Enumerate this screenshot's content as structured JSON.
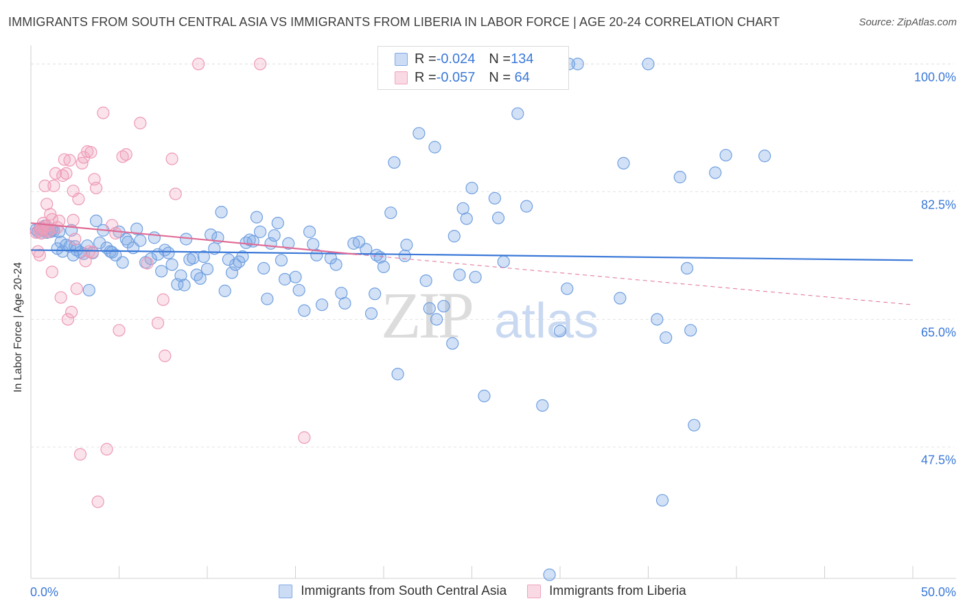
{
  "title": "IMMIGRANTS FROM SOUTH CENTRAL ASIA VS IMMIGRANTS FROM LIBERIA IN LABOR FORCE | AGE 20-24 CORRELATION CHART",
  "source": "Source: ZipAtlas.com",
  "watermark": {
    "zip": "ZIP",
    "atlas": "atlas"
  },
  "legend": {
    "rows": [
      {
        "r_label": "R = ",
        "r_value": "-0.024",
        "n_label": "N = ",
        "n_value": "134",
        "color": "#7fa8e6"
      },
      {
        "r_label": "R = ",
        "r_value": "-0.057",
        "n_label": "N = ",
        "n_value": " 64",
        "color": "#f0a3bc"
      }
    ]
  },
  "bottom_legend": [
    {
      "label": "Immigrants from South Central Asia",
      "color": "#7fa8e6"
    },
    {
      "label": "Immigrants from Liberia",
      "color": "#f0a3bc"
    }
  ],
  "colors": {
    "blue": "#6f9fe0",
    "pink": "#ee98b4",
    "blue_line": "#3a78d8",
    "pink_line": "#e06b95",
    "tick_text": "#3a78d8",
    "grid": "#e3e3e3"
  },
  "chart_data": {
    "type": "scatter",
    "title": "IMMIGRANTS FROM SOUTH CENTRAL ASIA VS IMMIGRANTS FROM LIBERIA IN LABOR FORCE | AGE 20-24 CORRELATION CHART",
    "xlabel": "",
    "ylabel": "In Labor Force | Age 20-24",
    "xlim": [
      0,
      50
    ],
    "ylim": [
      29.5,
      102
    ],
    "x_tick_labels": [
      {
        "value": 0,
        "label": "0.0%"
      },
      {
        "value": 50,
        "label": "50.0%"
      }
    ],
    "y_tick_labels": [
      {
        "value": 100,
        "label": "100.0%"
      },
      {
        "value": 82.5,
        "label": "82.5%"
      },
      {
        "value": 65,
        "label": "65.0%"
      },
      {
        "value": 47.5,
        "label": "47.5%"
      }
    ],
    "grid": true,
    "series": [
      {
        "name": "Immigrants from South Central Asia",
        "color": "#6f9fe0",
        "trend": {
          "x": [
            0,
            50
          ],
          "y": [
            74.5,
            73.1
          ],
          "dashed_from": null
        },
        "points": [
          [
            0.3,
            77.3
          ],
          [
            0.4,
            77.0
          ],
          [
            0.5,
            77.5
          ],
          [
            0.6,
            76.8
          ],
          [
            0.7,
            77.2
          ],
          [
            0.8,
            77.8
          ],
          [
            0.9,
            76.9
          ],
          [
            1.0,
            77.3
          ],
          [
            1.1,
            77.0
          ],
          [
            1.2,
            77.2
          ],
          [
            1.3,
            77.1
          ],
          [
            1.5,
            74.7
          ],
          [
            1.6,
            77.0
          ],
          [
            1.7,
            75.6
          ],
          [
            1.8,
            74.3
          ],
          [
            2.0,
            75.2
          ],
          [
            2.2,
            75.0
          ],
          [
            2.3,
            77.2
          ],
          [
            2.4,
            73.8
          ],
          [
            2.5,
            75.0
          ],
          [
            2.6,
            74.5
          ],
          [
            2.8,
            74.2
          ],
          [
            3.0,
            74.0
          ],
          [
            3.2,
            75.1
          ],
          [
            3.3,
            69.0
          ],
          [
            3.5,
            74.1
          ],
          [
            3.7,
            78.5
          ],
          [
            3.9,
            75.5
          ],
          [
            4.1,
            77.2
          ],
          [
            4.3,
            74.8
          ],
          [
            4.5,
            74.3
          ],
          [
            4.6,
            74.2
          ],
          [
            4.8,
            73.8
          ],
          [
            5.0,
            77.0
          ],
          [
            5.2,
            72.8
          ],
          [
            5.4,
            76.0
          ],
          [
            5.5,
            75.6
          ],
          [
            5.8,
            74.8
          ],
          [
            6.0,
            77.4
          ],
          [
            6.2,
            75.8
          ],
          [
            6.5,
            72.8
          ],
          [
            6.8,
            73.3
          ],
          [
            7.0,
            76.2
          ],
          [
            7.2,
            73.9
          ],
          [
            7.4,
            71.6
          ],
          [
            7.6,
            74.5
          ],
          [
            7.8,
            74.1
          ],
          [
            8.0,
            72.5
          ],
          [
            8.3,
            69.8
          ],
          [
            8.5,
            71.0
          ],
          [
            8.7,
            69.7
          ],
          [
            8.8,
            76.0
          ],
          [
            9.0,
            73.2
          ],
          [
            9.2,
            73.4
          ],
          [
            9.4,
            71.1
          ],
          [
            9.6,
            70.6
          ],
          [
            9.8,
            73.6
          ],
          [
            10.0,
            71.9
          ],
          [
            10.2,
            76.6
          ],
          [
            10.4,
            74.7
          ],
          [
            10.6,
            76.2
          ],
          [
            10.8,
            79.7
          ],
          [
            11.0,
            68.9
          ],
          [
            11.2,
            73.2
          ],
          [
            11.4,
            71.4
          ],
          [
            11.6,
            72.5
          ],
          [
            11.8,
            72.9
          ],
          [
            12.0,
            73.6
          ],
          [
            12.2,
            75.5
          ],
          [
            12.4,
            75.9
          ],
          [
            12.6,
            75.7
          ],
          [
            12.8,
            79.0
          ],
          [
            13.0,
            77.0
          ],
          [
            13.2,
            72.0
          ],
          [
            13.4,
            67.8
          ],
          [
            13.6,
            75.4
          ],
          [
            13.8,
            76.5
          ],
          [
            14.0,
            78.2
          ],
          [
            14.2,
            73.1
          ],
          [
            14.4,
            70.5
          ],
          [
            14.6,
            75.4
          ],
          [
            15.0,
            70.8
          ],
          [
            15.2,
            69.0
          ],
          [
            15.5,
            66.2
          ],
          [
            15.8,
            77.0
          ],
          [
            16.0,
            75.3
          ],
          [
            16.2,
            73.8
          ],
          [
            16.5,
            67.0
          ],
          [
            17.0,
            73.4
          ],
          [
            17.3,
            72.5
          ],
          [
            17.6,
            68.6
          ],
          [
            17.8,
            67.2
          ],
          [
            18.3,
            75.4
          ],
          [
            18.6,
            75.6
          ],
          [
            19.0,
            74.6
          ],
          [
            19.3,
            65.8
          ],
          [
            19.5,
            68.5
          ],
          [
            19.6,
            73.8
          ],
          [
            19.8,
            73.5
          ],
          [
            20.0,
            72.2
          ],
          [
            20.4,
            79.6
          ],
          [
            20.6,
            86.5
          ],
          [
            20.8,
            57.5
          ],
          [
            21.2,
            73.7
          ],
          [
            21.3,
            75.2
          ],
          [
            22.0,
            90.5
          ],
          [
            22.4,
            70.3
          ],
          [
            22.6,
            66.5
          ],
          [
            22.9,
            88.6
          ],
          [
            23.0,
            65.0
          ],
          [
            23.4,
            66.8
          ],
          [
            23.9,
            61.7
          ],
          [
            24.0,
            76.4
          ],
          [
            24.3,
            71.1
          ],
          [
            24.5,
            80.2
          ],
          [
            24.7,
            78.8
          ],
          [
            25.0,
            83.0
          ],
          [
            25.2,
            70.8
          ],
          [
            25.7,
            54.5
          ],
          [
            26.3,
            81.6
          ],
          [
            26.5,
            78.9
          ],
          [
            26.8,
            72.9
          ],
          [
            27.6,
            93.2
          ],
          [
            28.1,
            80.5
          ],
          [
            29.0,
            53.2
          ],
          [
            29.4,
            30.0
          ],
          [
            30.0,
            63.4
          ],
          [
            30.4,
            69.2
          ],
          [
            31.0,
            100.0
          ],
          [
            33.4,
            67.9
          ],
          [
            33.6,
            86.4
          ],
          [
            35.0,
            100.0
          ],
          [
            35.5,
            65.0
          ],
          [
            35.8,
            40.2
          ],
          [
            36.0,
            62.5
          ],
          [
            36.8,
            84.5
          ],
          [
            37.2,
            72.0
          ],
          [
            37.4,
            63.5
          ],
          [
            37.6,
            50.5
          ],
          [
            38.8,
            85.1
          ],
          [
            39.4,
            87.5
          ],
          [
            41.6,
            87.4
          ],
          [
            29.8,
            100.0
          ],
          [
            30.5,
            100.0
          ]
        ]
      },
      {
        "name": "Immigrants from Liberia",
        "color": "#ee98b4",
        "trend": {
          "x": [
            0,
            18.5,
            50
          ],
          "y": [
            78.2,
            73.9,
            67.0
          ],
          "dashed_from": 18.5
        },
        "points": [
          [
            0.3,
            76.9
          ],
          [
            0.4,
            74.3
          ],
          [
            0.5,
            73.8
          ],
          [
            0.6,
            77.6
          ],
          [
            0.7,
            78.2
          ],
          [
            0.8,
            83.3
          ],
          [
            0.9,
            80.8
          ],
          [
            1.0,
            77.3
          ],
          [
            1.1,
            79.4
          ],
          [
            1.2,
            78.7
          ],
          [
            1.2,
            71.5
          ],
          [
            1.3,
            83.3
          ],
          [
            1.4,
            85.0
          ],
          [
            1.5,
            77.6
          ],
          [
            1.6,
            78.5
          ],
          [
            1.7,
            68.0
          ],
          [
            1.8,
            84.7
          ],
          [
            1.9,
            86.9
          ],
          [
            2.0,
            85.0
          ],
          [
            2.1,
            65.0
          ],
          [
            2.2,
            86.8
          ],
          [
            2.3,
            66.0
          ],
          [
            2.4,
            78.6
          ],
          [
            2.4,
            82.6
          ],
          [
            2.5,
            76.0
          ],
          [
            2.6,
            69.2
          ],
          [
            2.7,
            81.5
          ],
          [
            2.8,
            46.5
          ],
          [
            2.9,
            86.4
          ],
          [
            3.0,
            87.2
          ],
          [
            3.1,
            73.0
          ],
          [
            3.2,
            88.0
          ],
          [
            3.3,
            74.3
          ],
          [
            3.4,
            87.9
          ],
          [
            3.5,
            74.2
          ],
          [
            3.6,
            84.2
          ],
          [
            3.7,
            83.0
          ],
          [
            3.8,
            40.0
          ],
          [
            4.1,
            93.3
          ],
          [
            4.3,
            47.2
          ],
          [
            4.6,
            77.9
          ],
          [
            4.8,
            76.8
          ],
          [
            5.0,
            63.5
          ],
          [
            5.2,
            87.3
          ],
          [
            5.4,
            87.6
          ],
          [
            6.2,
            91.9
          ],
          [
            6.6,
            72.7
          ],
          [
            7.2,
            64.5
          ],
          [
            7.5,
            67.7
          ],
          [
            7.6,
            60.0
          ],
          [
            8.0,
            87.0
          ],
          [
            8.2,
            82.2
          ],
          [
            9.5,
            100.0
          ],
          [
            13.0,
            100.0
          ],
          [
            15.5,
            48.8
          ],
          [
            0.5,
            77.1
          ],
          [
            0.6,
            76.8
          ],
          [
            0.7,
            77.4
          ],
          [
            1.0,
            77.0
          ],
          [
            0.9,
            77.8
          ]
        ]
      }
    ]
  }
}
